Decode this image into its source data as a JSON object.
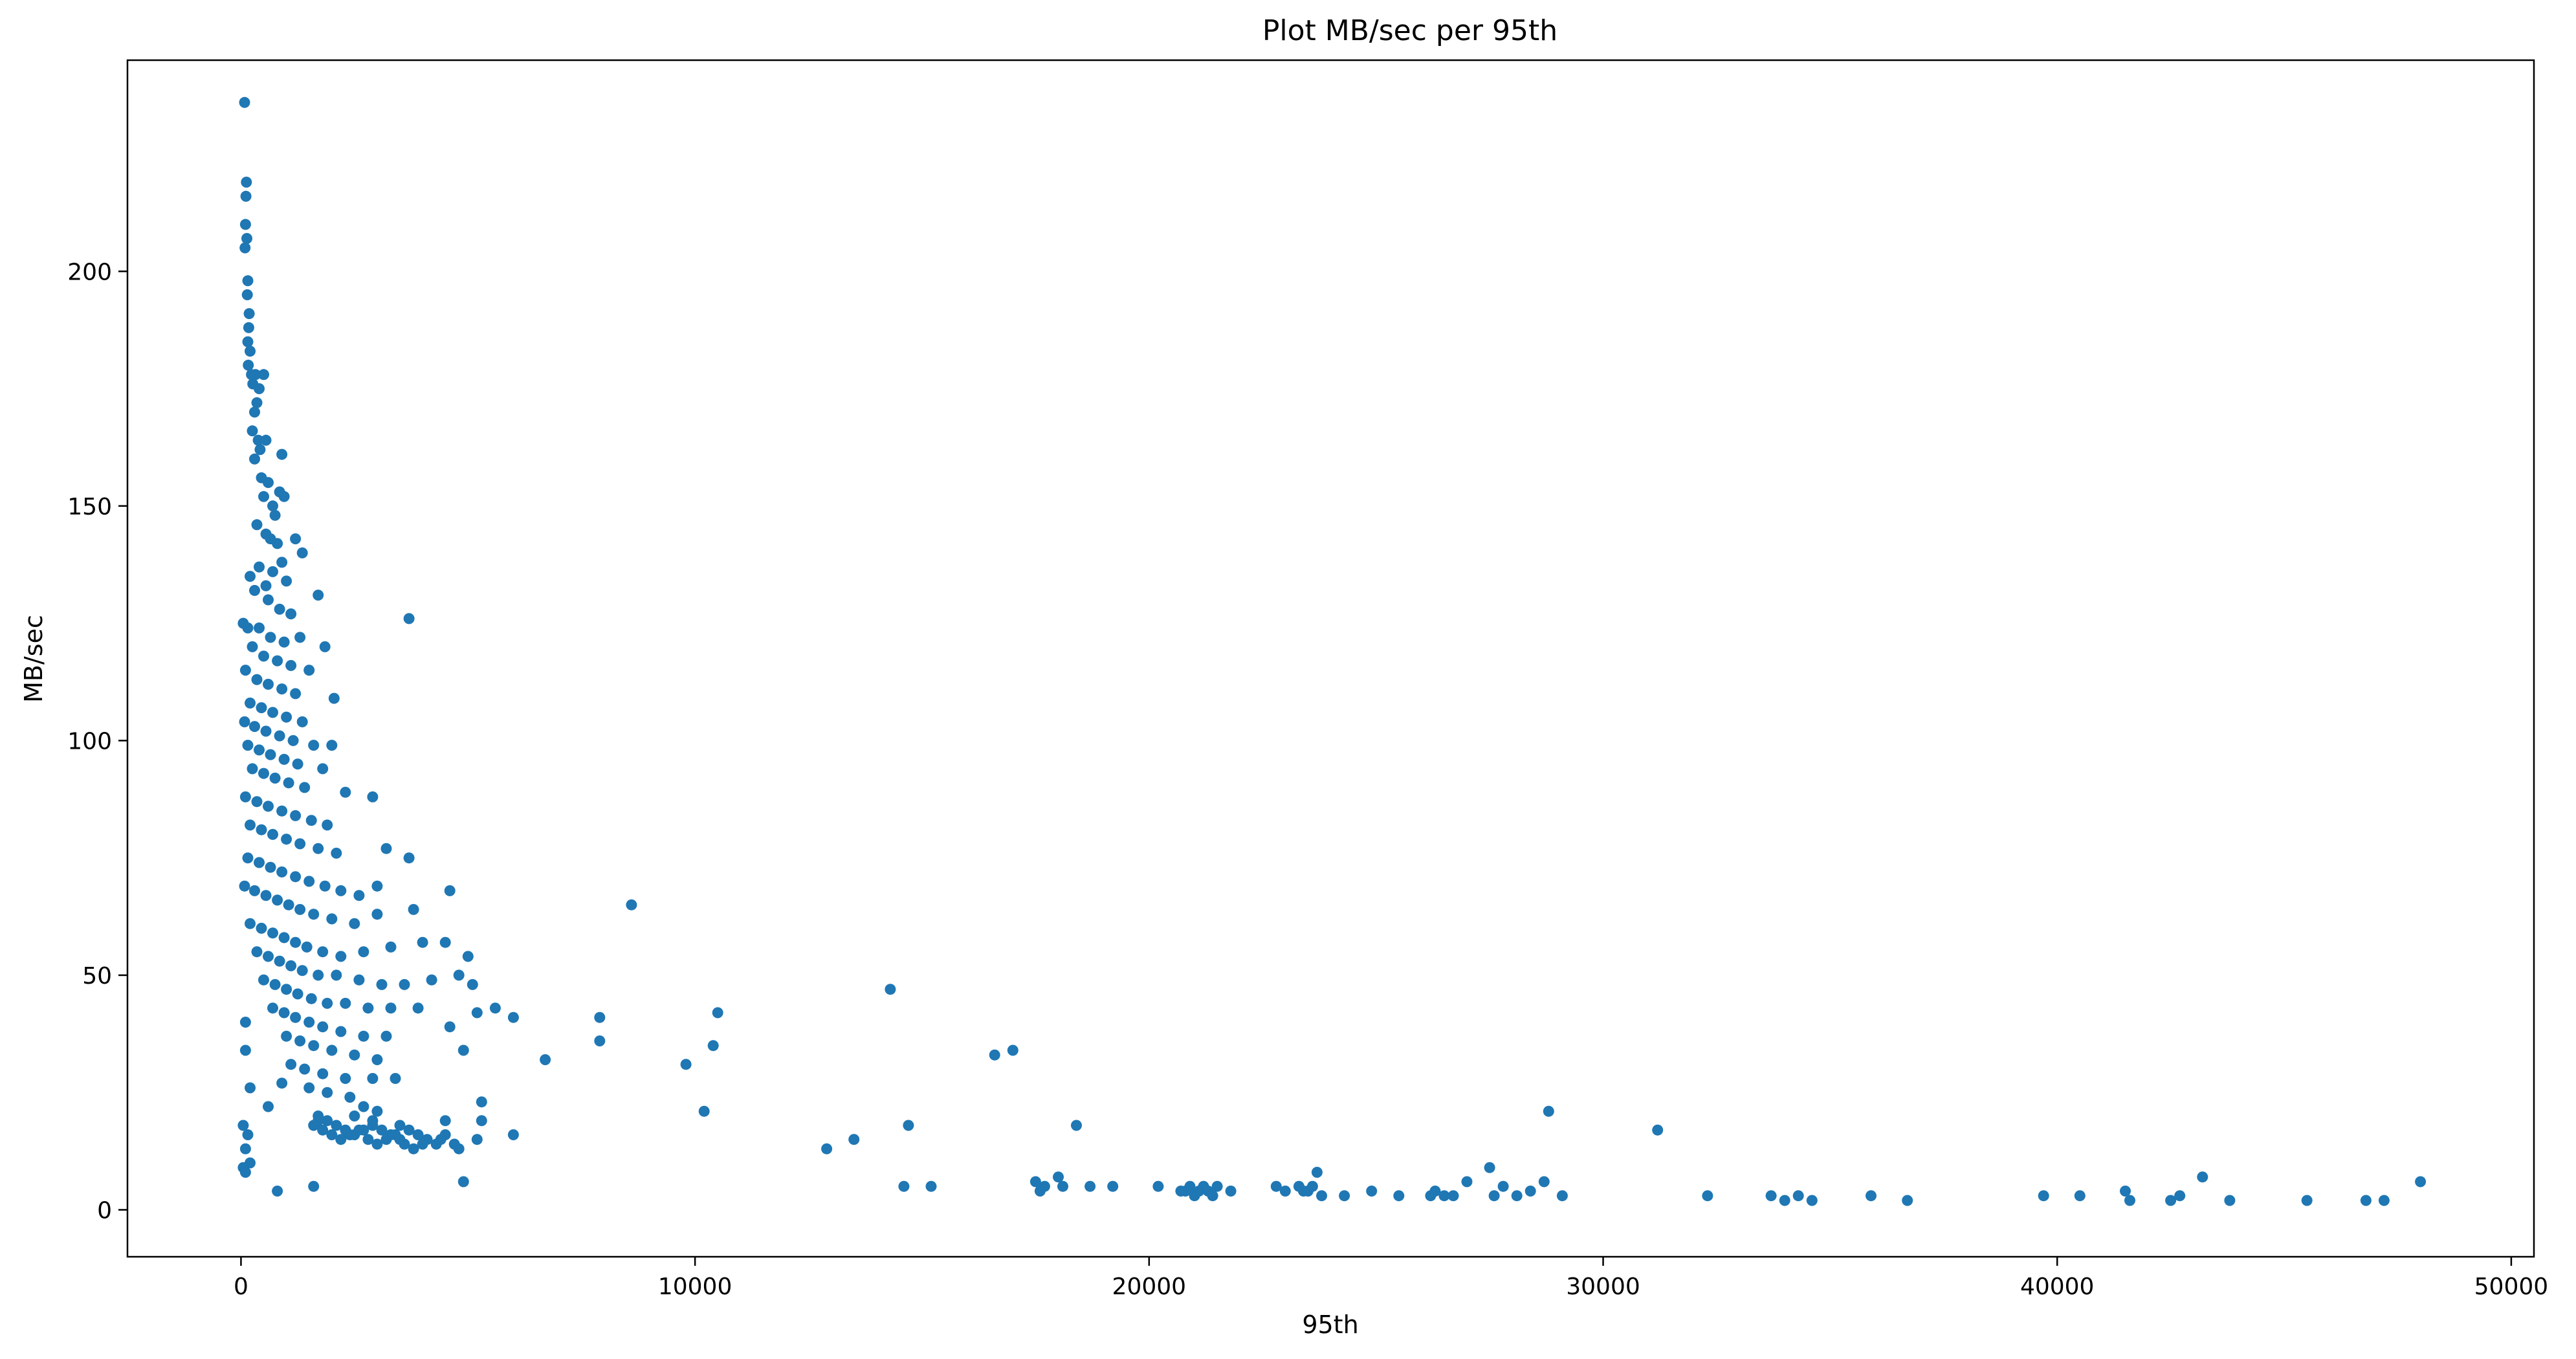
{
  "chart_data": {
    "type": "scatter",
    "title": "Plot MB/sec per 95th",
    "xlabel": "95th",
    "ylabel": "MB/sec",
    "xlim": [
      -2500,
      50500
    ],
    "ylim": [
      -10,
      245
    ],
    "xticks": [
      0,
      10000,
      20000,
      30000,
      40000,
      50000
    ],
    "yticks": [
      0,
      50,
      100,
      150,
      200
    ],
    "grid": false,
    "legend": "none",
    "marker_color": "#1f77b4",
    "series": [
      {
        "points": [
          [
            80,
            236
          ],
          [
            120,
            219
          ],
          [
            110,
            216
          ],
          [
            100,
            210
          ],
          [
            130,
            207
          ],
          [
            90,
            205
          ],
          [
            150,
            198
          ],
          [
            140,
            195
          ],
          [
            180,
            191
          ],
          [
            170,
            188
          ],
          [
            150,
            185
          ],
          [
            200,
            183
          ],
          [
            160,
            180
          ],
          [
            230,
            178
          ],
          [
            260,
            176
          ],
          [
            320,
            178
          ],
          [
            500,
            178
          ],
          [
            400,
            175
          ],
          [
            350,
            172
          ],
          [
            300,
            170
          ],
          [
            250,
            166
          ],
          [
            380,
            164
          ],
          [
            420,
            162
          ],
          [
            550,
            164
          ],
          [
            900,
            161
          ],
          [
            300,
            160
          ],
          [
            450,
            156
          ],
          [
            500,
            152
          ],
          [
            600,
            155
          ],
          [
            700,
            150
          ],
          [
            850,
            153
          ],
          [
            950,
            152
          ],
          [
            750,
            148
          ],
          [
            350,
            146
          ],
          [
            550,
            144
          ],
          [
            650,
            143
          ],
          [
            800,
            142
          ],
          [
            1200,
            143
          ],
          [
            1350,
            140
          ],
          [
            900,
            138
          ],
          [
            400,
            137
          ],
          [
            700,
            136
          ],
          [
            1000,
            134
          ],
          [
            200,
            135
          ],
          [
            550,
            133
          ],
          [
            1700,
            131
          ],
          [
            300,
            132
          ],
          [
            600,
            130
          ],
          [
            850,
            128
          ],
          [
            1100,
            127
          ],
          [
            3700,
            126
          ],
          [
            50,
            125
          ],
          [
            150,
            124
          ],
          [
            400,
            124
          ],
          [
            650,
            122
          ],
          [
            950,
            121
          ],
          [
            1300,
            122
          ],
          [
            1850,
            120
          ],
          [
            250,
            120
          ],
          [
            500,
            118
          ],
          [
            800,
            117
          ],
          [
            1100,
            116
          ],
          [
            1500,
            115
          ],
          [
            100,
            115
          ],
          [
            350,
            113
          ],
          [
            600,
            112
          ],
          [
            900,
            111
          ],
          [
            1200,
            110
          ],
          [
            2050,
            109
          ],
          [
            200,
            108
          ],
          [
            450,
            107
          ],
          [
            700,
            106
          ],
          [
            1000,
            105
          ],
          [
            1350,
            104
          ],
          [
            80,
            104
          ],
          [
            300,
            103
          ],
          [
            550,
            102
          ],
          [
            850,
            101
          ],
          [
            1150,
            100
          ],
          [
            1600,
            99
          ],
          [
            2000,
            99
          ],
          [
            150,
            99
          ],
          [
            400,
            98
          ],
          [
            650,
            97
          ],
          [
            950,
            96
          ],
          [
            1250,
            95
          ],
          [
            1800,
            94
          ],
          [
            250,
            94
          ],
          [
            500,
            93
          ],
          [
            750,
            92
          ],
          [
            1050,
            91
          ],
          [
            1400,
            90
          ],
          [
            2300,
            89
          ],
          [
            2900,
            88
          ],
          [
            100,
            88
          ],
          [
            350,
            87
          ],
          [
            600,
            86
          ],
          [
            900,
            85
          ],
          [
            1200,
            84
          ],
          [
            1550,
            83
          ],
          [
            1900,
            82
          ],
          [
            200,
            82
          ],
          [
            450,
            81
          ],
          [
            700,
            80
          ],
          [
            1000,
            79
          ],
          [
            1300,
            78
          ],
          [
            1700,
            77
          ],
          [
            2100,
            76
          ],
          [
            3200,
            77
          ],
          [
            3700,
            75
          ],
          [
            150,
            75
          ],
          [
            400,
            74
          ],
          [
            650,
            73
          ],
          [
            900,
            72
          ],
          [
            1200,
            71
          ],
          [
            1500,
            70
          ],
          [
            1850,
            69
          ],
          [
            2200,
            68
          ],
          [
            2600,
            67
          ],
          [
            3000,
            69
          ],
          [
            4600,
            68
          ],
          [
            80,
            69
          ],
          [
            300,
            68
          ],
          [
            550,
            67
          ],
          [
            800,
            66
          ],
          [
            1050,
            65
          ],
          [
            1300,
            64
          ],
          [
            1600,
            63
          ],
          [
            2000,
            62
          ],
          [
            2500,
            61
          ],
          [
            3000,
            63
          ],
          [
            3800,
            64
          ],
          [
            8600,
            65
          ],
          [
            200,
            61
          ],
          [
            450,
            60
          ],
          [
            700,
            59
          ],
          [
            950,
            58
          ],
          [
            1200,
            57
          ],
          [
            1450,
            56
          ],
          [
            1800,
            55
          ],
          [
            2200,
            54
          ],
          [
            2700,
            55
          ],
          [
            3300,
            56
          ],
          [
            4000,
            57
          ],
          [
            4500,
            57
          ],
          [
            5000,
            54
          ],
          [
            350,
            55
          ],
          [
            600,
            54
          ],
          [
            850,
            53
          ],
          [
            1100,
            52
          ],
          [
            1350,
            51
          ],
          [
            1700,
            50
          ],
          [
            2100,
            50
          ],
          [
            2600,
            49
          ],
          [
            3100,
            48
          ],
          [
            3600,
            48
          ],
          [
            4200,
            49
          ],
          [
            4800,
            50
          ],
          [
            5100,
            48
          ],
          [
            500,
            49
          ],
          [
            750,
            48
          ],
          [
            1000,
            47
          ],
          [
            1250,
            46
          ],
          [
            1550,
            45
          ],
          [
            1900,
            44
          ],
          [
            2300,
            44
          ],
          [
            2800,
            43
          ],
          [
            3300,
            43
          ],
          [
            3900,
            43
          ],
          [
            5200,
            42
          ],
          [
            5600,
            43
          ],
          [
            6000,
            41
          ],
          [
            7900,
            41
          ],
          [
            10500,
            42
          ],
          [
            14300,
            47
          ],
          [
            700,
            43
          ],
          [
            950,
            42
          ],
          [
            1200,
            41
          ],
          [
            1500,
            40
          ],
          [
            1800,
            39
          ],
          [
            2200,
            38
          ],
          [
            2700,
            37
          ],
          [
            3200,
            37
          ],
          [
            4600,
            39
          ],
          [
            7900,
            36
          ],
          [
            10400,
            35
          ],
          [
            100,
            40
          ],
          [
            1000,
            37
          ],
          [
            1300,
            36
          ],
          [
            1600,
            35
          ],
          [
            2000,
            34
          ],
          [
            2500,
            33
          ],
          [
            3000,
            32
          ],
          [
            4900,
            34
          ],
          [
            6700,
            32
          ],
          [
            16600,
            33
          ],
          [
            17000,
            34
          ],
          [
            100,
            34
          ],
          [
            1100,
            31
          ],
          [
            1400,
            30
          ],
          [
            1800,
            29
          ],
          [
            2300,
            28
          ],
          [
            2900,
            28
          ],
          [
            3400,
            28
          ],
          [
            9800,
            31
          ],
          [
            200,
            26
          ],
          [
            900,
            27
          ],
          [
            1500,
            26
          ],
          [
            1900,
            25
          ],
          [
            2400,
            24
          ],
          [
            2700,
            22
          ],
          [
            3000,
            21
          ],
          [
            5300,
            23
          ],
          [
            10200,
            21
          ],
          [
            28800,
            21
          ],
          [
            600,
            22
          ],
          [
            1700,
            20
          ],
          [
            1900,
            19
          ],
          [
            2100,
            18
          ],
          [
            2300,
            17
          ],
          [
            2500,
            16
          ],
          [
            2700,
            17
          ],
          [
            2900,
            18
          ],
          [
            3100,
            17
          ],
          [
            3300,
            16
          ],
          [
            3500,
            15
          ],
          [
            3700,
            17
          ],
          [
            3900,
            16
          ],
          [
            4100,
            15
          ],
          [
            4300,
            14
          ],
          [
            4500,
            16
          ],
          [
            4700,
            14
          ],
          [
            5200,
            15
          ],
          [
            1600,
            18
          ],
          [
            1800,
            17
          ],
          [
            2000,
            16
          ],
          [
            2200,
            15
          ],
          [
            2400,
            16
          ],
          [
            2600,
            17
          ],
          [
            2800,
            15
          ],
          [
            3000,
            14
          ],
          [
            3200,
            15
          ],
          [
            3400,
            16
          ],
          [
            3600,
            14
          ],
          [
            3800,
            13
          ],
          [
            4000,
            14
          ],
          [
            4400,
            15
          ],
          [
            4800,
            13
          ],
          [
            5300,
            19
          ],
          [
            6000,
            16
          ],
          [
            13500,
            15
          ],
          [
            14700,
            18
          ],
          [
            18400,
            18
          ],
          [
            31200,
            17
          ],
          [
            1700,
            19
          ],
          [
            2500,
            20
          ],
          [
            2900,
            19
          ],
          [
            3500,
            18
          ],
          [
            4500,
            19
          ],
          [
            50,
            18
          ],
          [
            150,
            16
          ],
          [
            12900,
            13
          ],
          [
            100,
            13
          ],
          [
            200,
            10
          ],
          [
            50,
            9
          ],
          [
            100,
            8
          ],
          [
            800,
            4
          ],
          [
            1600,
            5
          ],
          [
            4900,
            6
          ],
          [
            14600,
            5
          ],
          [
            15200,
            5
          ],
          [
            17500,
            6
          ],
          [
            17600,
            4
          ],
          [
            17700,
            5
          ],
          [
            18000,
            7
          ],
          [
            18100,
            5
          ],
          [
            18700,
            5
          ],
          [
            19200,
            5
          ],
          [
            20200,
            5
          ],
          [
            20700,
            4
          ],
          [
            20800,
            4
          ],
          [
            20900,
            5
          ],
          [
            21000,
            3
          ],
          [
            21100,
            4
          ],
          [
            21200,
            5
          ],
          [
            21300,
            4
          ],
          [
            21400,
            3
          ],
          [
            21500,
            5
          ],
          [
            21800,
            4
          ],
          [
            22800,
            5
          ],
          [
            23000,
            4
          ],
          [
            23300,
            5
          ],
          [
            23400,
            4
          ],
          [
            23500,
            4
          ],
          [
            23600,
            5
          ],
          [
            23700,
            8
          ],
          [
            23800,
            3
          ],
          [
            24300,
            3
          ],
          [
            24900,
            4
          ],
          [
            25500,
            3
          ],
          [
            26200,
            3
          ],
          [
            26300,
            4
          ],
          [
            26500,
            3
          ],
          [
            26700,
            3
          ],
          [
            27000,
            6
          ],
          [
            27500,
            9
          ],
          [
            27600,
            3
          ],
          [
            27800,
            5
          ],
          [
            28100,
            3
          ],
          [
            28400,
            4
          ],
          [
            28700,
            6
          ],
          [
            29100,
            3
          ],
          [
            32300,
            3
          ],
          [
            33700,
            3
          ],
          [
            34000,
            2
          ],
          [
            34300,
            3
          ],
          [
            34600,
            2
          ],
          [
            35900,
            3
          ],
          [
            36700,
            2
          ],
          [
            39700,
            3
          ],
          [
            40500,
            3
          ],
          [
            41500,
            4
          ],
          [
            41600,
            2
          ],
          [
            42500,
            2
          ],
          [
            42700,
            3
          ],
          [
            43200,
            7
          ],
          [
            43800,
            2
          ],
          [
            45500,
            2
          ],
          [
            46800,
            2
          ],
          [
            47200,
            2
          ],
          [
            48000,
            6
          ]
        ]
      }
    ]
  }
}
